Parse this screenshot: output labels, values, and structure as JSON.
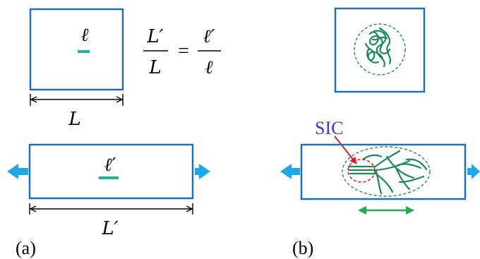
{
  "colors": {
    "box_stroke": "#1f6fb5",
    "teal_segment": "#1fb59a",
    "chain_green": "#1b8a5a",
    "arrow_blue": "#21a7e8",
    "sic_label": "#3b3bd0",
    "sic_circle_red": "#e02020",
    "double_arrow_green": "#1fae4f",
    "text": "#000000"
  },
  "panel_a": {
    "label": "(a)",
    "top_box": {
      "segment_label": "ℓ",
      "dimension_label": "L"
    },
    "equation": {
      "lhs_numerator": "L′",
      "lhs_denominator": "L",
      "equals": "=",
      "rhs_numerator": "ℓ′",
      "rhs_denominator": "ℓ"
    },
    "bottom_box": {
      "segment_label": "ℓ′",
      "dimension_label": "L′"
    }
  },
  "panel_b": {
    "label": "(b)",
    "sic_label": "SIC"
  }
}
